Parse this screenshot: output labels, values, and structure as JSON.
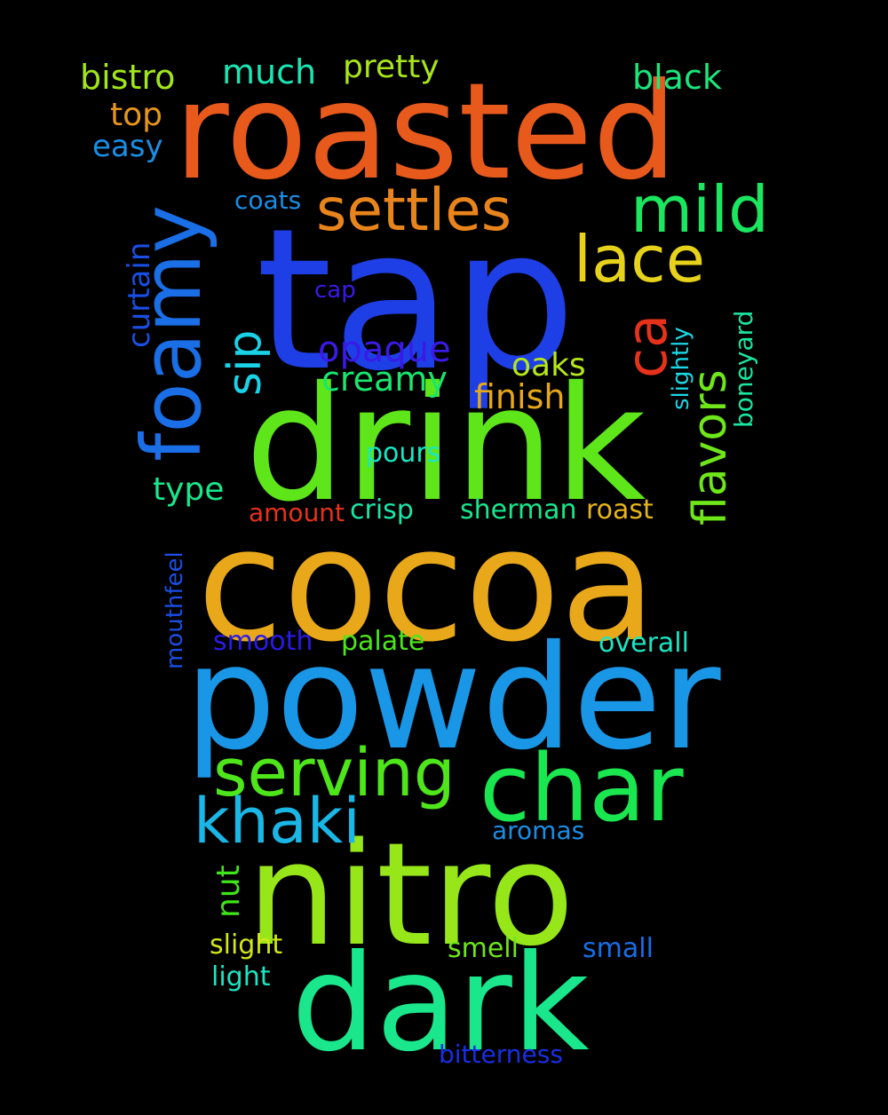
{
  "words": {
    "tap": "tap",
    "roasted": "roasted",
    "drink": "drink",
    "cocoa": "cocoa",
    "powder": "powder",
    "nitro": "nitro",
    "dark": "dark",
    "char": "char",
    "serving": "serving",
    "khaki": "khaki",
    "foamy": "foamy",
    "settles": "settles",
    "mild": "mild",
    "lace": "lace",
    "ca": "ca",
    "flavors": "flavors",
    "sip": "sip",
    "opaque": "opaque",
    "creamy": "creamy",
    "oaks": "oaks",
    "finish": "finish",
    "bistro": "bistro",
    "much": "much",
    "pretty": "pretty",
    "black": "black",
    "top": "top",
    "easy": "easy",
    "coats": "coats",
    "cap": "cap",
    "curtain": "curtain",
    "slightly": "slightly",
    "boneyard": "boneyard",
    "pours": "pours",
    "type": "type",
    "amount": "amount",
    "crisp": "crisp",
    "sherman": "sherman",
    "roast": "roast",
    "mouthfeel": "mouthfeel",
    "smooth": "smooth",
    "palate": "palate",
    "overall": "overall",
    "aromas": "aromas",
    "nut": "nut",
    "slight": "slight",
    "smell": "smell",
    "small": "small",
    "light": "light",
    "bitterness": "bitterness"
  },
  "colors": {
    "background": "#000000",
    "tap": "#1f3fe6",
    "roasted": "#e85a1c",
    "drink": "#5ee61a",
    "cocoa": "#e8a81a",
    "powder": "#1a96e6",
    "nitro": "#96e61a",
    "dark": "#1ae68c",
    "char": "#1ae650",
    "serving": "#4ee61a",
    "khaki": "#1ab6e6",
    "foamy": "#1a6ee6",
    "settles": "#e8841c",
    "mild": "#1ae660",
    "lace": "#e6d21a",
    "ca": "#e6321a",
    "flavors": "#6ee61a",
    "sip": "#1ad2e6",
    "opaque": "#3a1ae6",
    "creamy": "#1ae66e",
    "oaks": "#b4e61a",
    "finish": "#e6a81a",
    "bistro": "#a0e61a",
    "much": "#1ae6b4",
    "pretty": "#a8e61a",
    "black": "#1ae67c",
    "top": "#e8961c",
    "easy": "#1a8ee6",
    "coats": "#1a8ee6",
    "cap": "#3a1ae6",
    "curtain": "#1a4ee6",
    "slightly": "#1ad8e6",
    "boneyard": "#1ae6a0",
    "pours": "#1ae6c2",
    "type": "#1ae68c",
    "amount": "#e6321a",
    "crisp": "#1ae6a8",
    "sherman": "#1ae68c",
    "roast": "#e6b41a",
    "mouthfeel": "#1a4ee6",
    "smooth": "#2a1ae6",
    "palate": "#4ee61a",
    "overall": "#1ae6c2",
    "aromas": "#1a8ee6",
    "nut": "#3ee61a",
    "slight": "#d2e61a",
    "smell": "#6ee61a",
    "small": "#1a6ee6",
    "light": "#1ae6c2",
    "bitterness": "#1a2ee6"
  }
}
